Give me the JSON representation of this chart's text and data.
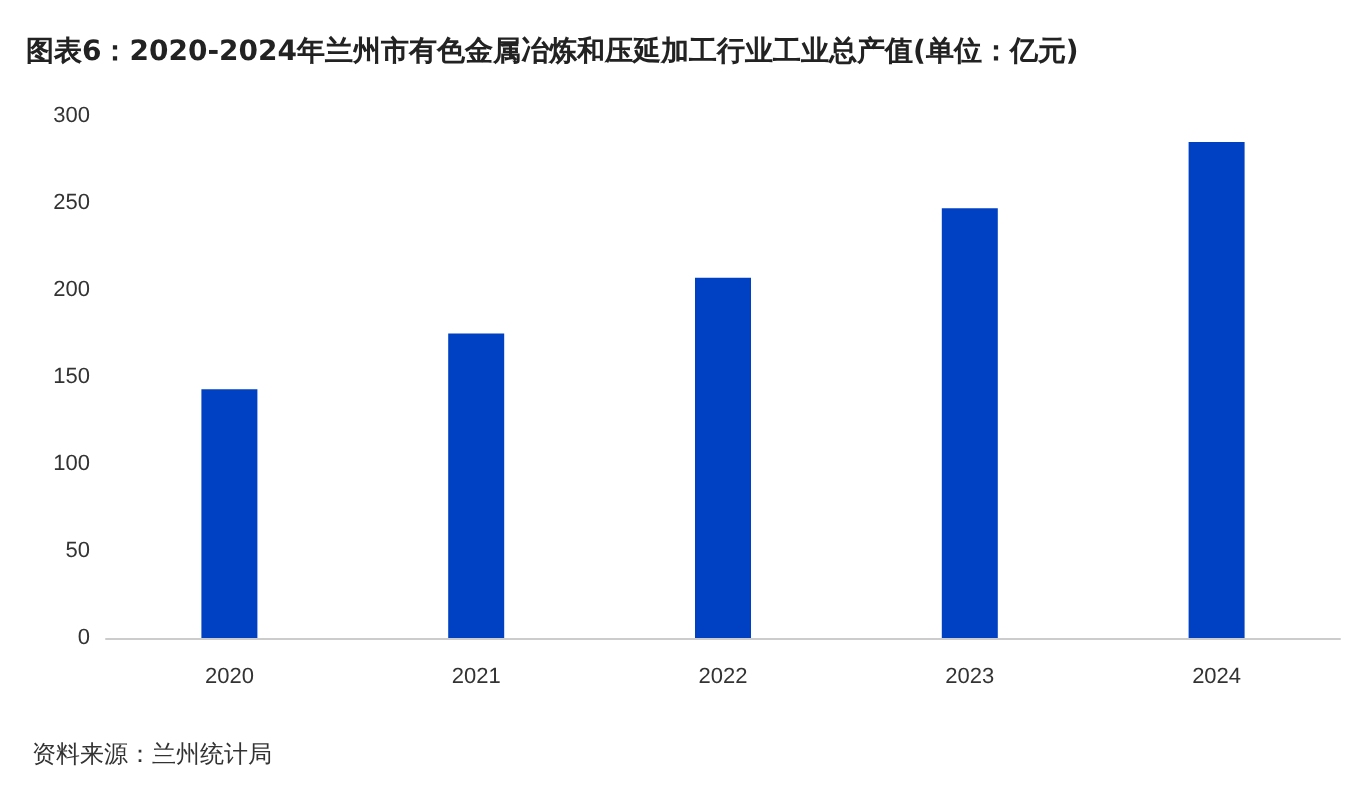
{
  "chart_data": {
    "type": "bar",
    "title": "图表6：2020-2024年兰州市有色金属冶炼和压延加工行业工业总产值(单位：亿元)",
    "categories": [
      "2020",
      "2021",
      "2022",
      "2023",
      "2024"
    ],
    "values": [
      143,
      175,
      207,
      247,
      285
    ],
    "color": "#0041c4",
    "ylim": [
      0,
      300
    ],
    "yticks": [
      0,
      50,
      100,
      150,
      200,
      250,
      300
    ],
    "grid": false,
    "annotations": [
      "资料来源：兰州统计局"
    ]
  }
}
